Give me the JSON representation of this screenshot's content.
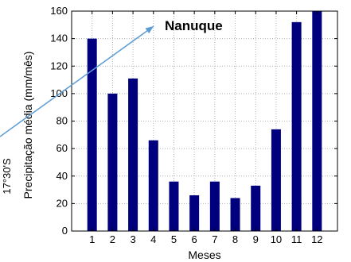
{
  "chart_data": {
    "type": "bar",
    "title": "Nanuque",
    "xlabel": "Meses",
    "ylabel": "Precipitação média (mm/mês)",
    "side_label": "17°30'S",
    "categories": [
      "1",
      "2",
      "3",
      "4",
      "5",
      "6",
      "7",
      "8",
      "9",
      "10",
      "11",
      "12"
    ],
    "values": [
      140,
      100,
      111,
      66,
      36,
      26,
      36,
      24,
      33,
      74,
      152,
      160
    ],
    "ylim": [
      0,
      160
    ],
    "yticks": [
      0,
      20,
      40,
      60,
      80,
      100,
      120,
      140,
      160
    ],
    "grid": true,
    "bar_color": "#00007f",
    "arrow_color": "#5b9bd5"
  }
}
